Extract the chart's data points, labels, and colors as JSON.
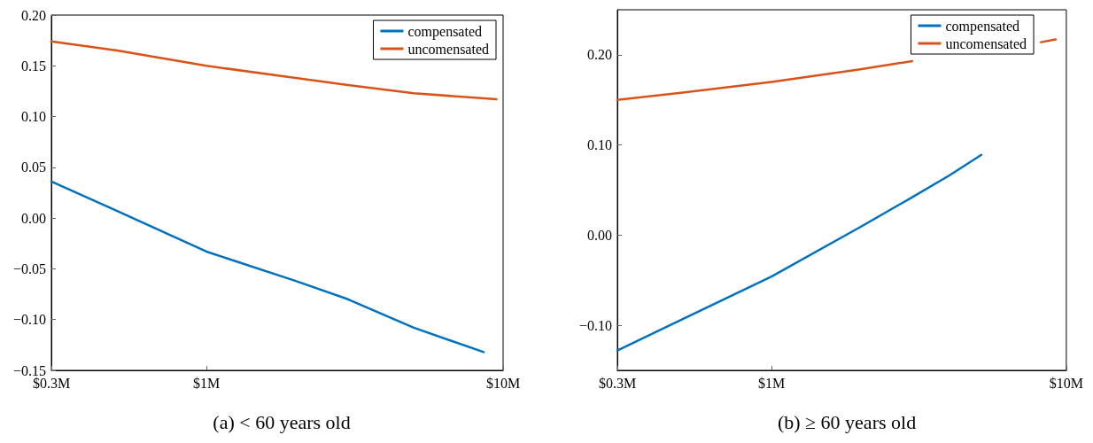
{
  "chart_data": [
    {
      "type": "line",
      "title": "(a) < 60 years old",
      "log": "x",
      "legend": "top right",
      "xlim": [
        0.3,
        10
      ],
      "xticks": [
        {
          "value": 0.3,
          "label": "$0.3M"
        },
        {
          "value": 1,
          "label": "$1M"
        },
        {
          "value": 10,
          "label": "$10M"
        }
      ],
      "ylim": [
        -0.15,
        0.2
      ],
      "yticks": [
        {
          "value": -0.15,
          "label": "−0.15"
        },
        {
          "value": -0.1,
          "label": "−0.10"
        },
        {
          "value": -0.05,
          "label": "−0.05"
        },
        {
          "value": 0,
          "label": "0.00"
        },
        {
          "value": 0.05,
          "label": "0.05"
        },
        {
          "value": 0.1,
          "label": "0.10"
        },
        {
          "value": 0.15,
          "label": "0.15"
        },
        {
          "value": 0.2,
          "label": "0.20"
        }
      ],
      "series": [
        {
          "name": "compensated",
          "color": "#0072bd",
          "x": [
            0.3,
            0.5,
            1,
            2,
            3,
            5,
            8.6
          ],
          "values": [
            0.036,
            0.007,
            -0.033,
            -0.062,
            -0.08,
            -0.108,
            -0.132
          ]
        },
        {
          "name": "uncomensated",
          "color": "#d95319",
          "x": [
            0.3,
            0.5,
            1,
            2,
            3,
            5,
            9.5
          ],
          "values": [
            0.174,
            0.165,
            0.15,
            0.138,
            0.131,
            0.123,
            0.117
          ]
        }
      ]
    },
    {
      "type": "line",
      "title": "(b) ≥ 60 years old",
      "log": "x",
      "legend": "top right",
      "xlim": [
        0.3,
        10
      ],
      "xticks": [
        {
          "value": 0.3,
          "label": "$0.3M"
        },
        {
          "value": 1,
          "label": "$1M"
        },
        {
          "value": 10,
          "label": "$10M"
        }
      ],
      "ylim": [
        -0.15,
        0.25
      ],
      "yticks": [
        {
          "value": -0.1,
          "label": "−0.10"
        },
        {
          "value": 0,
          "label": "0.00"
        },
        {
          "value": 0.1,
          "label": "0.10"
        },
        {
          "value": 0.2,
          "label": "0.20"
        }
      ],
      "series": [
        {
          "name": "compensated",
          "color": "#0072bd",
          "x": [
            0.3,
            0.5,
            1,
            2,
            3,
            4,
            5.15
          ],
          "values": [
            -0.128,
            -0.093,
            -0.046,
            0.009,
            0.042,
            0.066,
            0.089
          ]
        },
        {
          "name": "uncomensated",
          "color": "#d95319",
          "x": [
            0.3,
            0.5,
            1,
            2,
            3,
            5,
            8.2,
            9.2
          ],
          "values": [
            0.15,
            0.158,
            0.17,
            0.184,
            0.193,
            null,
            0.214,
            0.217
          ]
        }
      ]
    }
  ]
}
